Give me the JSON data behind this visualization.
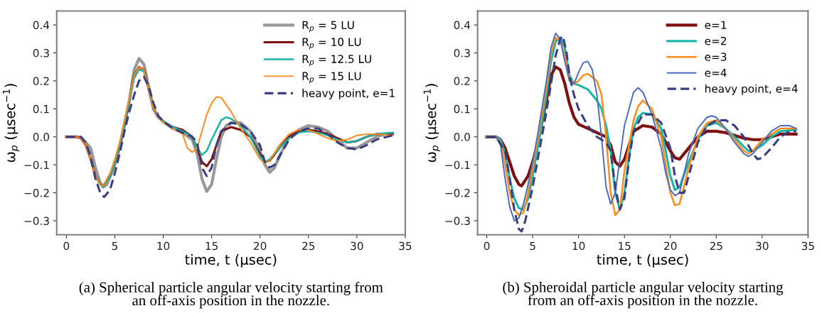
{
  "chart_data": [
    {
      "type": "line",
      "xlabel": "time, t (μsec)",
      "ylabel": "ω$_{p}$ (μsec$^{−1}$)",
      "xlim": [
        -1,
        35
      ],
      "ylim": [
        -0.35,
        0.45
      ],
      "xticks": [
        0,
        5,
        10,
        15,
        20,
        25,
        30,
        35
      ],
      "yticks": [
        -0.3,
        -0.2,
        -0.1,
        {
          "value": 0,
          "label": "0.0"
        },
        0.1,
        0.2,
        0.3,
        0.4
      ],
      "grid": false,
      "legend": "top right",
      "annotations": [
        "(a) Spherical particle angular velocity starting from\nan off-axis position in the nozzle."
      ],
      "series": [
        {
          "name": "R$_{p}$ = 5 LU",
          "color": "#999999",
          "line_style": "solid",
          "x": [
            0,
            1,
            1.5,
            2,
            2.5,
            3,
            3.5,
            3.8,
            4.2,
            5,
            5.5,
            6,
            6.5,
            7,
            7.5,
            8,
            8.5,
            9,
            9.5,
            10,
            11,
            12,
            13,
            13.5,
            14,
            14.5,
            15,
            15.5,
            16,
            16.5,
            17,
            18,
            19,
            20,
            20.5,
            21,
            21.5,
            22,
            23,
            24,
            25,
            26,
            27,
            28,
            29,
            30,
            31,
            32,
            33,
            33.7
          ],
          "values": [
            0,
            0,
            -0.003,
            -0.02,
            -0.04,
            -0.11,
            -0.165,
            -0.18,
            -0.17,
            -0.1,
            -0.04,
            0.04,
            0.13,
            0.24,
            0.28,
            0.26,
            0.18,
            0.1,
            0.07,
            0.055,
            0.03,
            0.015,
            -0.01,
            -0.06,
            -0.15,
            -0.195,
            -0.17,
            -0.08,
            0.0,
            0.04,
            0.05,
            0.05,
            0.02,
            -0.05,
            -0.1,
            -0.127,
            -0.11,
            -0.07,
            0.0,
            0.025,
            0.04,
            0.035,
            0.02,
            -0.01,
            -0.04,
            -0.04,
            -0.02,
            0.0,
            0.01,
            0.01
          ]
        },
        {
          "name": "R$_{p}$ = 10 LU",
          "color": "#7f1010",
          "line_style": "solid",
          "x": [
            0,
            1,
            1.5,
            2,
            2.5,
            3,
            3.5,
            3.8,
            4.5,
            5,
            5.5,
            6,
            6.5,
            7,
            7.5,
            8,
            8.5,
            9,
            9.5,
            10,
            11,
            12,
            13,
            13.5,
            14,
            14.5,
            15,
            15.5,
            16,
            17,
            18,
            19,
            20,
            20.5,
            21,
            22,
            23,
            24,
            25,
            26,
            27,
            28,
            29,
            30,
            31,
            32,
            33.7
          ],
          "values": [
            0,
            0,
            -0.005,
            -0.03,
            -0.08,
            -0.14,
            -0.17,
            -0.175,
            -0.14,
            -0.09,
            -0.03,
            0.05,
            0.13,
            0.22,
            0.25,
            0.24,
            0.17,
            0.1,
            0.07,
            0.055,
            0.035,
            0.025,
            0.0,
            -0.04,
            -0.09,
            -0.105,
            -0.08,
            -0.03,
            0.02,
            0.035,
            0.025,
            0.0,
            -0.06,
            -0.09,
            -0.085,
            -0.04,
            0.0,
            0.02,
            0.025,
            0.02,
            0.01,
            -0.005,
            -0.02,
            -0.015,
            0.0,
            0.01,
            0.012
          ]
        },
        {
          "name": "R$_{p}$ = 12.5 LU",
          "color": "#1cb5a8",
          "line_style": "solid",
          "x": [
            3,
            3.5,
            3.8,
            4.5,
            5,
            5.5,
            6,
            6.5,
            7,
            7.5,
            8,
            8.5,
            9,
            9.5,
            10,
            11,
            12,
            13,
            13.5,
            14,
            14.5,
            15,
            16,
            16.5,
            17,
            18,
            19,
            20,
            20.5,
            21,
            22,
            23,
            24,
            25,
            26,
            27,
            28,
            29,
            30,
            31,
            32,
            33.7
          ],
          "values": [
            -0.14,
            -0.17,
            -0.178,
            -0.14,
            -0.09,
            -0.03,
            0.05,
            0.13,
            0.21,
            0.24,
            0.235,
            0.17,
            0.1,
            0.07,
            0.055,
            0.035,
            0.02,
            0.0,
            -0.04,
            -0.065,
            -0.05,
            -0.01,
            0.06,
            0.07,
            0.065,
            0.04,
            0.0,
            -0.07,
            -0.09,
            -0.08,
            -0.04,
            -0.005,
            0.015,
            0.02,
            0.015,
            0.005,
            -0.01,
            -0.02,
            -0.015,
            0.0,
            0.01,
            0.015
          ]
        },
        {
          "name": "R$_{p}$ = 15 LU",
          "color": "#ff8c1a",
          "line_style": "solid",
          "x": [
            0,
            1,
            1.5,
            2,
            2.5,
            3,
            3.5,
            3.8,
            4.5,
            5,
            5.5,
            6,
            6.5,
            7,
            7.5,
            8,
            8.5,
            9,
            9.5,
            10,
            11,
            12,
            12.5,
            13,
            13.5,
            14,
            14.5,
            15,
            15.5,
            16,
            17,
            18,
            19,
            20,
            20.5,
            21,
            22,
            23,
            24,
            25,
            26,
            27,
            28,
            29,
            30,
            31,
            32,
            33.7
          ],
          "values": [
            0,
            0,
            -0.005,
            -0.03,
            -0.08,
            -0.14,
            -0.17,
            -0.175,
            -0.13,
            -0.08,
            -0.02,
            0.06,
            0.14,
            0.22,
            0.25,
            0.24,
            0.17,
            0.1,
            0.07,
            0.05,
            0.03,
            0.01,
            -0.04,
            -0.055,
            -0.04,
            0.02,
            0.08,
            0.12,
            0.143,
            0.14,
            0.09,
            0.03,
            -0.02,
            -0.08,
            -0.095,
            -0.085,
            -0.03,
            0.01,
            0.025,
            0.025,
            0.01,
            -0.005,
            -0.015,
            -0.01,
            0.005,
            0.01,
            0.01,
            0.005
          ]
        },
        {
          "name": "heavy point, e=1",
          "color": "#3a3f80",
          "line_style": "dashed",
          "x": [
            0,
            1,
            1.5,
            2,
            2.5,
            3,
            3.5,
            3.9,
            4.5,
            5,
            5.5,
            6,
            6.5,
            7,
            7.5,
            8,
            8.5,
            9,
            9.5,
            10,
            11,
            12,
            13,
            13.5,
            14,
            14.5,
            15,
            15.5,
            16,
            17,
            18,
            19,
            20,
            20.5,
            21,
            21.5,
            22,
            23,
            24,
            25,
            26,
            27,
            28,
            29,
            30,
            31,
            32,
            33.7
          ],
          "values": [
            0,
            0,
            0,
            -0.02,
            -0.07,
            -0.15,
            -0.2,
            -0.215,
            -0.19,
            -0.13,
            -0.06,
            0.02,
            0.09,
            0.15,
            0.2,
            0.215,
            0.18,
            0.12,
            0.075,
            0.055,
            0.03,
            0.015,
            0.0,
            -0.02,
            -0.11,
            -0.14,
            -0.11,
            -0.03,
            0.02,
            0.05,
            0.045,
            0.02,
            -0.03,
            -0.09,
            -0.11,
            -0.1,
            -0.07,
            -0.01,
            0.02,
            0.03,
            0.03,
            0.01,
            -0.02,
            -0.04,
            -0.045,
            -0.03,
            -0.01,
            0.005
          ]
        }
      ]
    },
    {
      "type": "line",
      "xlabel": "time, t (μsec)",
      "ylabel": "ω$_{p}$ (μsec$^{−1}$)",
      "xlim": [
        -1,
        35
      ],
      "ylim": [
        -0.35,
        0.45
      ],
      "xticks": [
        0,
        5,
        10,
        15,
        20,
        25,
        30,
        35
      ],
      "yticks": [
        -0.3,
        -0.2,
        -0.1,
        {
          "value": 0,
          "label": "0.0"
        },
        0.1,
        0.2,
        0.3,
        0.4
      ],
      "grid": false,
      "legend": "top right",
      "annotations": [
        "(b) Spheroidal particle angular velocity starting\nfrom an off-axis position in the nozzle."
      ],
      "series": [
        {
          "name": "e=1",
          "color": "#7f1010",
          "line_style": "solid",
          "x": [
            0,
            1,
            1.5,
            2,
            2.5,
            3,
            3.5,
            3.8,
            4.5,
            5,
            5.5,
            6,
            6.5,
            7,
            7.5,
            8,
            8.5,
            9,
            9.5,
            10,
            11,
            12,
            13,
            13.5,
            14,
            14.5,
            15,
            15.5,
            16,
            17,
            18,
            19,
            20,
            20.5,
            21,
            22,
            23,
            24,
            25,
            26,
            27,
            28,
            29,
            30,
            31,
            32,
            33.7
          ],
          "values": [
            0,
            0,
            -0.01,
            -0.04,
            -0.09,
            -0.14,
            -0.17,
            -0.175,
            -0.14,
            -0.09,
            -0.03,
            0.05,
            0.13,
            0.22,
            0.25,
            0.24,
            0.19,
            0.12,
            0.07,
            0.045,
            0.03,
            0.015,
            0.0,
            -0.03,
            -0.09,
            -0.105,
            -0.08,
            -0.03,
            0.02,
            0.04,
            0.035,
            0.01,
            -0.05,
            -0.075,
            -0.08,
            -0.04,
            0.0,
            0.02,
            0.02,
            0.015,
            0.005,
            -0.005,
            -0.01,
            -0.01,
            0.0,
            0.01,
            0.01
          ]
        },
        {
          "name": "e=2",
          "color": "#1cb5a8",
          "line_style": "solid",
          "x": [
            0,
            1,
            1.5,
            2,
            2.5,
            3,
            3.5,
            4,
            4.5,
            5,
            5.5,
            6,
            6.5,
            7,
            7.5,
            8,
            8.5,
            9,
            9.5,
            10,
            11,
            12,
            12.5,
            13,
            13.5,
            14,
            14.5,
            15,
            15.5,
            16,
            16.5,
            17,
            18,
            19,
            19.5,
            20,
            20.5,
            21,
            22,
            23,
            24,
            25,
            26,
            27,
            28,
            28.5,
            29,
            30,
            31,
            32,
            33.7
          ],
          "values": [
            0,
            0,
            -0.01,
            -0.06,
            -0.15,
            -0.22,
            -0.255,
            -0.26,
            -0.22,
            -0.14,
            -0.05,
            0.05,
            0.15,
            0.27,
            0.34,
            0.355,
            0.32,
            0.22,
            0.19,
            0.185,
            0.17,
            0.13,
            0.1,
            0.04,
            -0.05,
            -0.2,
            -0.26,
            -0.2,
            -0.07,
            0.03,
            0.07,
            0.085,
            0.08,
            0.03,
            -0.05,
            -0.14,
            -0.19,
            -0.18,
            -0.09,
            -0.01,
            0.04,
            0.05,
            0.03,
            0.0,
            -0.035,
            -0.05,
            -0.05,
            -0.03,
            0.0,
            0.02,
            0.025
          ]
        },
        {
          "name": "e=3",
          "color": "#ff8c1a",
          "line_style": "solid",
          "x": [
            0,
            1,
            1.5,
            2,
            2.5,
            3,
            3.5,
            4,
            4.5,
            5,
            5.5,
            6,
            6.5,
            7,
            7.5,
            8,
            8.5,
            9,
            9.5,
            10,
            10.5,
            11,
            12,
            12.5,
            13,
            13.5,
            14,
            14.5,
            15,
            16,
            16.5,
            17,
            18,
            19,
            19.5,
            20,
            20.5,
            21,
            22,
            23,
            24,
            25,
            26,
            27,
            28,
            28.5,
            29,
            30,
            31,
            32,
            33.7
          ],
          "values": [
            0,
            0,
            -0.02,
            -0.1,
            -0.2,
            -0.26,
            -0.28,
            -0.27,
            -0.2,
            -0.11,
            -0.02,
            0.08,
            0.18,
            0.3,
            0.355,
            0.345,
            0.29,
            0.21,
            0.19,
            0.2,
            0.22,
            0.225,
            0.2,
            0.15,
            0.0,
            -0.2,
            -0.28,
            -0.26,
            -0.12,
            0.06,
            0.11,
            0.13,
            0.1,
            0.0,
            -0.1,
            -0.2,
            -0.245,
            -0.24,
            -0.11,
            0.0,
            0.05,
            0.06,
            0.03,
            -0.01,
            -0.05,
            -0.06,
            -0.05,
            -0.01,
            0.01,
            0.03,
            0.03
          ]
        },
        {
          "name": "e=4",
          "color": "#4a6bbf",
          "line_style": "solid",
          "x": [
            0,
            1,
            1.5,
            2,
            2.5,
            3,
            3.5,
            4,
            4.5,
            5,
            5.5,
            6,
            6.5,
            7,
            7.5,
            8,
            8.5,
            9,
            9.5,
            10,
            10.5,
            11,
            11.5,
            12,
            12.5,
            13,
            13.5,
            14,
            14.5,
            15,
            16,
            16.5,
            17,
            18,
            19,
            19.5,
            20,
            20.5,
            21,
            22,
            23,
            24,
            24.5,
            25,
            26,
            27,
            28,
            28.5,
            29,
            30,
            31,
            32,
            33,
            33.7
          ],
          "values": [
            0,
            0,
            -0.03,
            -0.15,
            -0.25,
            -0.3,
            -0.29,
            -0.24,
            -0.17,
            -0.09,
            0.0,
            0.1,
            0.2,
            0.32,
            0.37,
            0.35,
            0.27,
            0.2,
            0.19,
            0.23,
            0.265,
            0.27,
            0.24,
            0.15,
            0.0,
            -0.18,
            -0.24,
            -0.2,
            -0.08,
            0.04,
            0.16,
            0.175,
            0.16,
            0.08,
            -0.04,
            -0.13,
            -0.19,
            -0.21,
            -0.2,
            -0.06,
            0.03,
            0.07,
            0.075,
            0.07,
            0.03,
            -0.02,
            -0.06,
            -0.07,
            -0.06,
            -0.02,
            0.02,
            0.04,
            0.04,
            0.03
          ]
        },
        {
          "name": "heavy point, e=4",
          "color": "#3a3f80",
          "line_style": "dashed",
          "x": [
            0,
            1,
            2,
            2.5,
            3,
            3.5,
            3.8,
            4.2,
            5,
            5.5,
            6,
            6.5,
            7,
            7.5,
            8,
            8.3,
            8.7,
            9,
            9.5,
            10,
            11,
            12,
            12.5,
            13,
            13.5,
            14,
            14.5,
            15,
            15.5,
            16,
            17,
            18,
            19,
            20,
            20.5,
            21,
            21.5,
            22,
            23,
            24,
            25,
            26,
            27,
            28,
            29,
            29.5,
            30,
            31,
            32,
            33,
            33.7
          ],
          "values": [
            0,
            0,
            -0.05,
            -0.15,
            -0.26,
            -0.33,
            -0.338,
            -0.3,
            -0.18,
            -0.09,
            0.0,
            0.09,
            0.19,
            0.29,
            0.35,
            0.36,
            0.3,
            0.22,
            0.15,
            0.1,
            0.04,
            0.0,
            -0.01,
            -0.02,
            -0.05,
            -0.18,
            -0.26,
            -0.22,
            -0.08,
            0.02,
            0.08,
            0.08,
            0.05,
            -0.04,
            -0.14,
            -0.2,
            -0.2,
            -0.14,
            -0.02,
            0.04,
            0.058,
            0.06,
            0.04,
            0.0,
            -0.06,
            -0.08,
            -0.075,
            -0.04,
            0.0,
            0.02,
            0.02
          ]
        }
      ]
    }
  ]
}
